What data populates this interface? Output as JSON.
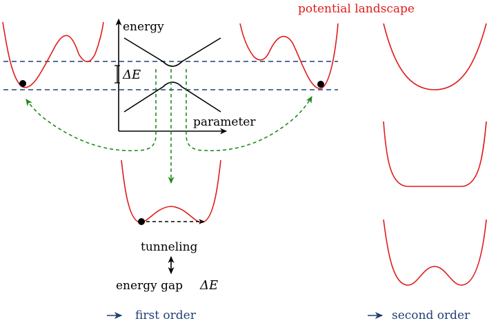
{
  "labels": {
    "potential_landscape": "potential landscape",
    "energy": "energy",
    "parameter": "parameter",
    "delta_e": "ΔE",
    "tunneling": "tunneling",
    "energy_gap": "energy gap",
    "energy_gap_symbol": "ΔE",
    "first_order": "first order",
    "second_order": "second order"
  },
  "colors": {
    "potential": "#e01b1b",
    "green_arrow": "#1e8a1e",
    "blue_dashed": "#1f3f73",
    "black": "#000000"
  }
}
